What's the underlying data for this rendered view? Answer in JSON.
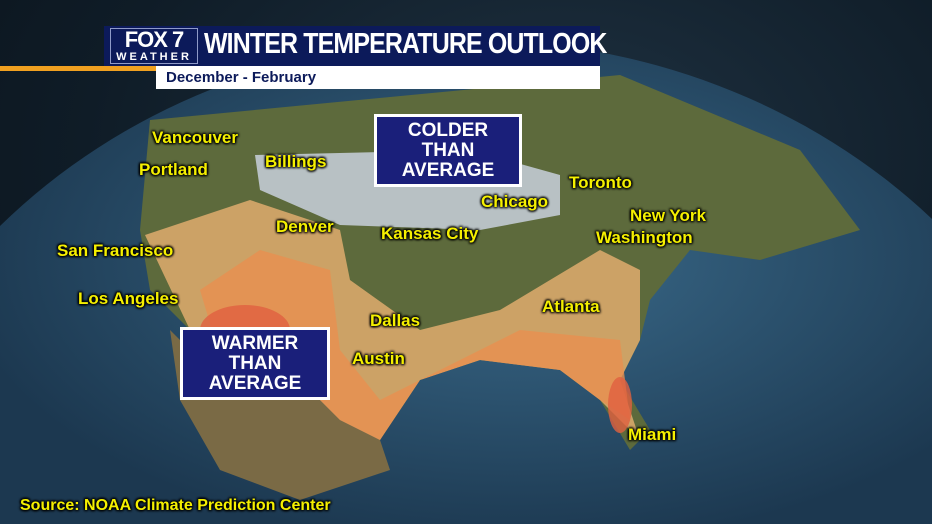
{
  "header": {
    "logo_top": "FOX 7",
    "logo_bottom": "WEATHER",
    "title": "WINTER TEMPERATURE OUTLOOK",
    "subtitle": "December - February"
  },
  "legend_boxes": {
    "colder": [
      "COLDER",
      "THAN",
      "AVERAGE"
    ],
    "warmer": [
      "WARMER",
      "THAN",
      "AVERAGE"
    ]
  },
  "colors": {
    "colder": "#c8d0dc",
    "warmer_light": "#e8b070",
    "warmer": "#e89050",
    "warmer_strong": "#e06040",
    "box": "#1a1f7a",
    "label": "#f5f000"
  },
  "cities": [
    "Vancouver",
    "Portland",
    "Billings",
    "San Francisco",
    "Los Angeles",
    "Denver",
    "Kansas City",
    "Chicago",
    "Toronto",
    "New York",
    "Washington",
    "Dallas",
    "Austin",
    "Atlanta",
    "Miami"
  ],
  "source": "Source: NOAA Climate Prediction Center"
}
